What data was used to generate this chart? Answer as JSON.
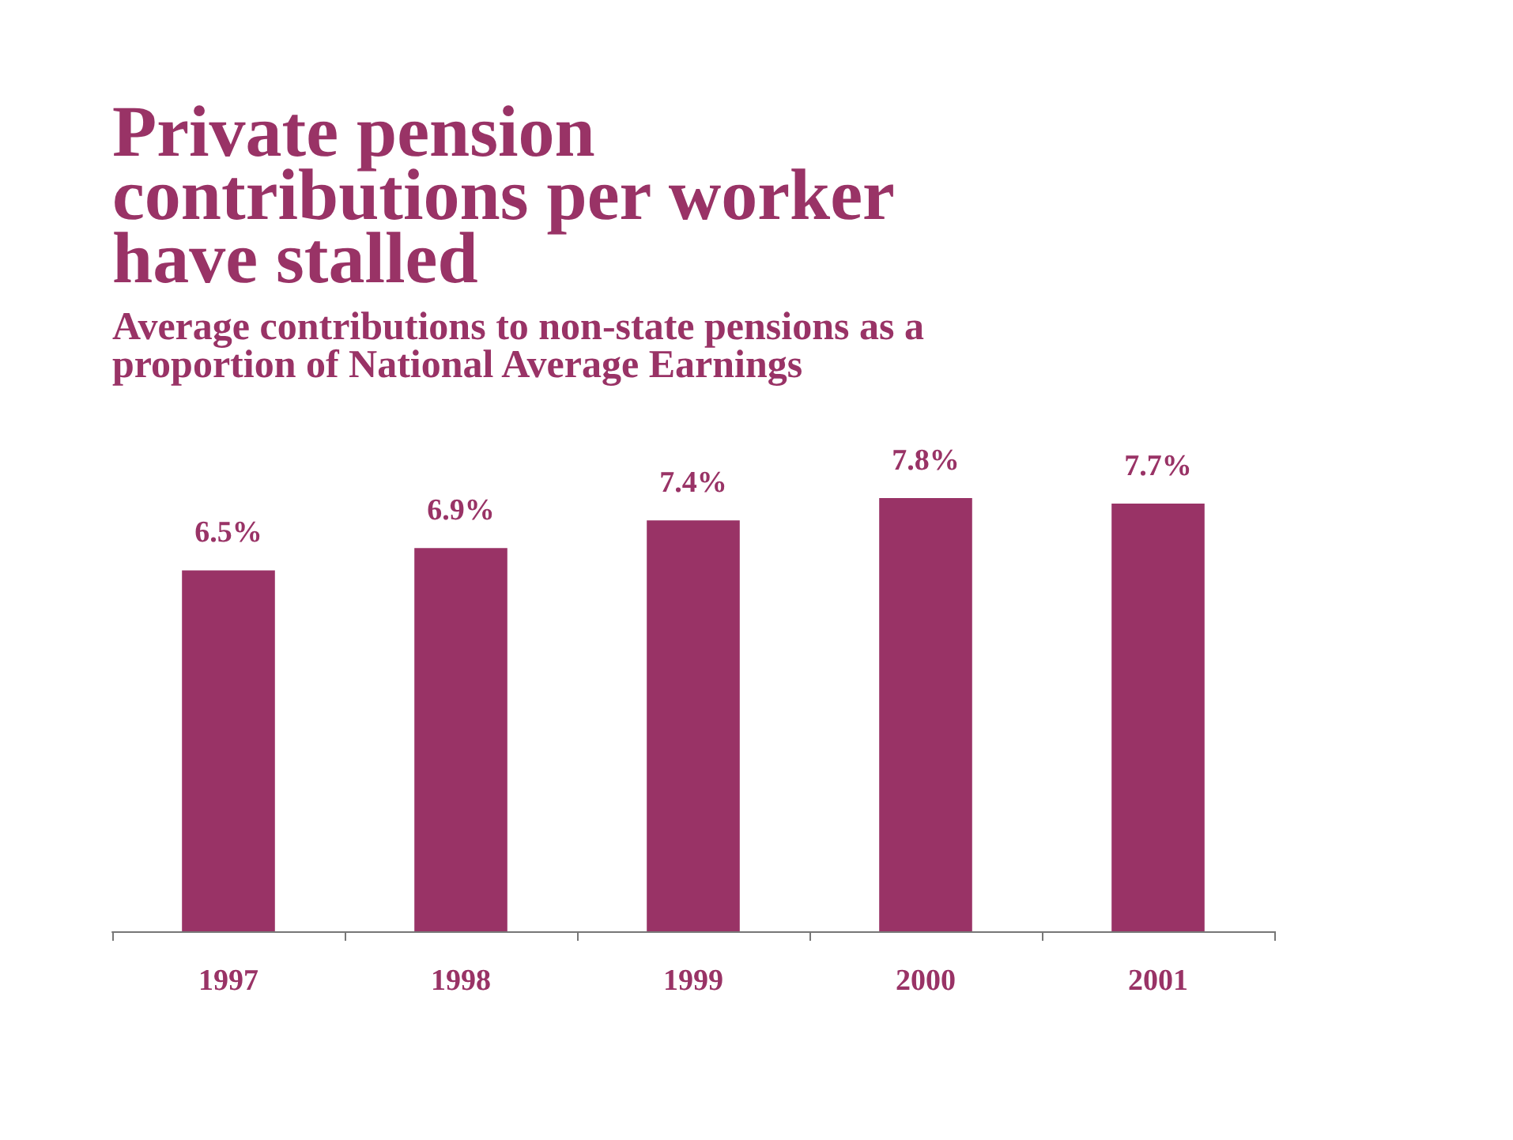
{
  "chart_data": {
    "type": "bar",
    "title": "Private pension\ncontributions per worker\nhave stalled",
    "subtitle": "Average contributions to non-state pensions as a\nproportion of National Average Earnings",
    "categories": [
      "1997",
      "1998",
      "1999",
      "2000",
      "2001"
    ],
    "values": [
      6.5,
      6.9,
      7.4,
      7.8,
      7.7
    ],
    "color": "#993366",
    "data_labels": true,
    "value_labels": [
      "6.5%",
      "6.9%",
      "7.4%",
      "7.8%",
      "7.7%"
    ]
  }
}
